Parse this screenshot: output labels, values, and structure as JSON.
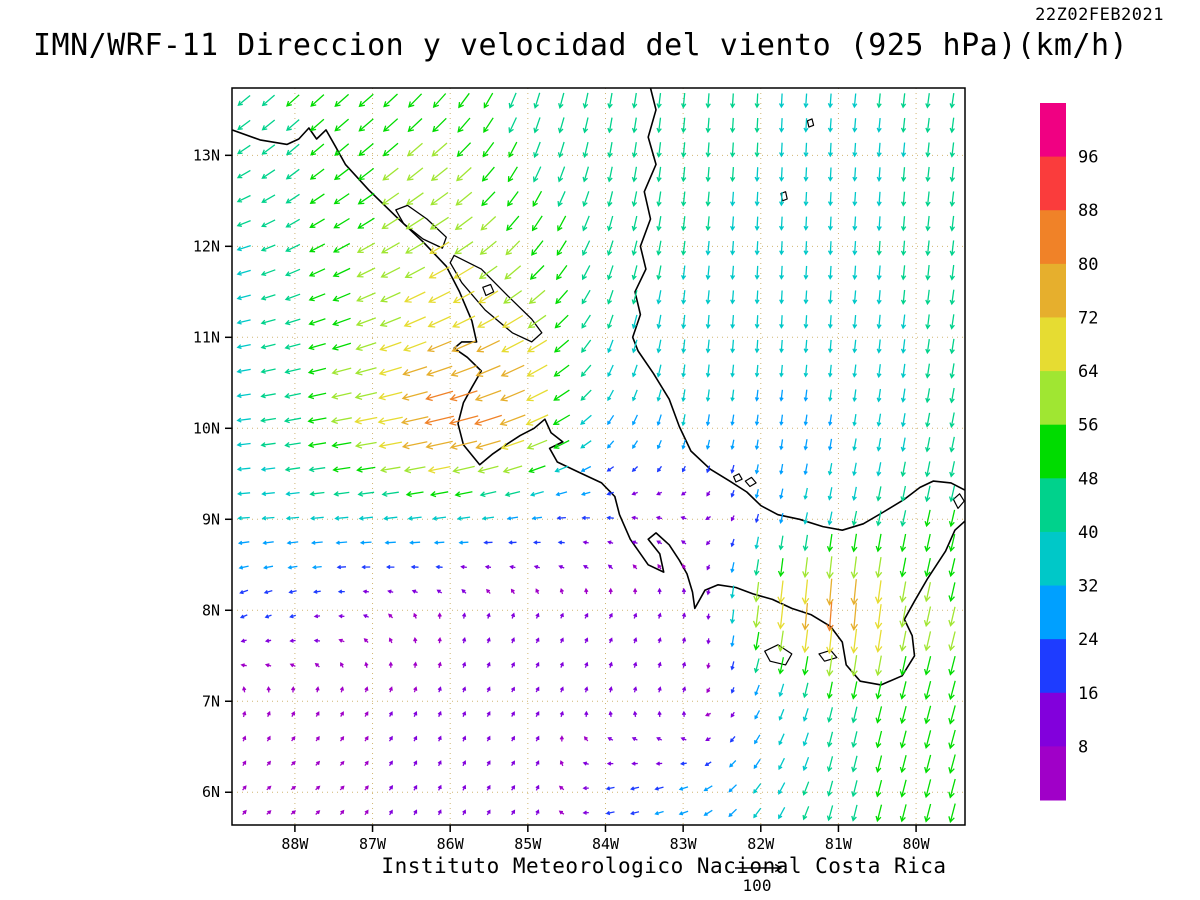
{
  "title": "IMN/WRF-11 Direccion y velocidad del viento (925 hPa)(km/h)",
  "timestamp": "22Z02FEB2021",
  "footer": {
    "text": "Instituto Meteorologico Nacional Costa Rica",
    "reference_label": "100"
  },
  "chart_data": {
    "type": "vector-field-map",
    "model": "IMN/WRF-11",
    "variable": "Direccion y velocidad del viento",
    "level": "925 hPa",
    "units": "km/h",
    "valid_time": "22Z02FEB2021",
    "x_axis": {
      "labels": [
        "88W",
        "87W",
        "86W",
        "85W",
        "84W",
        "83W",
        "82W",
        "81W",
        "80W"
      ],
      "values": [
        88,
        87,
        86,
        85,
        84,
        83,
        82,
        81,
        80
      ]
    },
    "y_axis": {
      "labels": [
        "13N",
        "12N",
        "11N",
        "10N",
        "9N",
        "8N",
        "7N",
        "6N"
      ],
      "values": [
        13,
        12,
        11,
        10,
        9,
        8,
        7,
        6
      ]
    },
    "lon_range_west": [
      88.81,
      79.37
    ],
    "lat_range": [
      13.74,
      5.64
    ],
    "grid_lines": true,
    "reference_vector": 100,
    "colorbar": {
      "levels": [
        8,
        16,
        24,
        32,
        40,
        48,
        56,
        64,
        72,
        80,
        88,
        96
      ],
      "colors": [
        "#a000c8",
        "#8200dc",
        "#1e3cff",
        "#00a0ff",
        "#00c8c8",
        "#00d28c",
        "#00dc00",
        "#a0e632",
        "#e6dc32",
        "#e6af2d",
        "#f08228",
        "#fa3c3c",
        "#f00082"
      ],
      "labels_top_to_bottom": [
        "96",
        "88",
        "80",
        "72",
        "64",
        "56",
        "48",
        "40",
        "32",
        "24",
        "16",
        "8"
      ]
    },
    "wind_grid": {
      "lons_west": [
        89,
        88,
        87,
        86,
        85,
        84,
        83,
        82,
        81,
        80,
        79
      ],
      "lats": [
        14,
        13,
        12,
        11,
        10,
        9,
        8,
        7,
        6,
        5.5
      ],
      "u": [
        [
          -32,
          -36,
          -40,
          -28,
          -12,
          -8,
          -4,
          -2,
          -4,
          -6,
          -8
        ],
        [
          -36,
          -36,
          -42,
          -44,
          -18,
          -8,
          -4,
          -2,
          -2,
          -4,
          -6
        ],
        [
          -37,
          -40,
          -50,
          -56,
          -35,
          -14,
          -5,
          -2,
          -2,
          -4,
          -6
        ],
        [
          -35,
          -43,
          -58,
          -68,
          -60,
          -14,
          -4,
          -2,
          -3,
          -5,
          -8
        ],
        [
          -34,
          -47,
          -66,
          -88,
          -70,
          -18,
          -6,
          -4,
          -5,
          -7,
          -10
        ],
        [
          -32,
          -35,
          -38,
          -36,
          -27,
          -19,
          -10,
          -6,
          -8,
          -10,
          -12
        ],
        [
          -21,
          -17,
          -8,
          1,
          3,
          5,
          2,
          -8,
          -6,
          -12,
          -14
        ],
        [
          1,
          3,
          4,
          3,
          6,
          2,
          4,
          -12,
          -10,
          -13,
          -16
        ],
        [
          4,
          6,
          5,
          4,
          8,
          -23,
          -25,
          -20,
          -11,
          -13,
          -16
        ],
        [
          4,
          5,
          3,
          4,
          7,
          -21,
          -23,
          -19,
          -11,
          -13,
          -15
        ]
      ],
      "v": [
        [
          -30,
          -34,
          -36,
          -42,
          -44,
          -43,
          -42,
          -40,
          -40,
          -42,
          -43
        ],
        [
          -20,
          -30,
          -35,
          -38,
          -44,
          -43,
          -42,
          -40,
          -38,
          -40,
          -43
        ],
        [
          -8,
          -20,
          -28,
          -34,
          -42,
          -42,
          -40,
          -38,
          -38,
          -42,
          -44
        ],
        [
          -6,
          -12,
          -20,
          -30,
          -34,
          -37,
          -38,
          -36,
          -36,
          -40,
          -43
        ],
        [
          -3,
          -8,
          -12,
          -20,
          -28,
          -24,
          -31,
          -28,
          -30,
          -39,
          -45
        ],
        [
          -2,
          -3,
          -4,
          -5,
          -4,
          2,
          4,
          -24,
          -39,
          -47,
          -48
        ],
        [
          -11,
          -5,
          4,
          8,
          8,
          8,
          10,
          -69,
          -88,
          -58,
          -53
        ],
        [
          8,
          7,
          7,
          8,
          10,
          11,
          12,
          -25,
          -44,
          -50,
          -56
        ],
        [
          6,
          4,
          6,
          9,
          11,
          -5,
          -8,
          -28,
          -45,
          -50,
          -58
        ],
        [
          5,
          5,
          7,
          9,
          10,
          -4,
          -8,
          -27,
          -44,
          -50,
          -56
        ]
      ]
    }
  },
  "map": {
    "coastline_color": "#000000",
    "coastlines": [
      [
        [
          88.81,
          13.28
        ],
        [
          88.45,
          13.17
        ],
        [
          88.1,
          13.12
        ],
        [
          87.95,
          13.18
        ],
        [
          87.82,
          13.3
        ],
        [
          87.72,
          13.18
        ],
        [
          87.6,
          13.28
        ],
        [
          87.48,
          13.1
        ],
        [
          87.35,
          12.9
        ],
        [
          87.05,
          12.62
        ],
        [
          86.7,
          12.33
        ],
        [
          86.35,
          12.05
        ],
        [
          86.05,
          11.78
        ],
        [
          85.88,
          11.5
        ],
        [
          85.72,
          11.18
        ],
        [
          85.66,
          10.95
        ],
        [
          85.85,
          10.95
        ],
        [
          85.95,
          10.88
        ],
        [
          85.78,
          10.78
        ],
        [
          85.6,
          10.63
        ],
        [
          85.72,
          10.45
        ],
        [
          85.83,
          10.28
        ],
        [
          85.9,
          10.05
        ],
        [
          85.83,
          9.82
        ],
        [
          85.62,
          9.6
        ],
        [
          85.45,
          9.72
        ],
        [
          85.28,
          9.82
        ],
        [
          85.1,
          9.92
        ],
        [
          84.92,
          10.0
        ],
        [
          84.78,
          10.1
        ],
        [
          84.7,
          9.95
        ],
        [
          84.55,
          9.85
        ],
        [
          84.72,
          9.78
        ],
        [
          84.62,
          9.63
        ],
        [
          84.35,
          9.52
        ],
        [
          84.05,
          9.4
        ],
        [
          83.88,
          9.25
        ],
        [
          83.82,
          9.05
        ],
        [
          83.68,
          8.78
        ],
        [
          83.45,
          8.5
        ],
        [
          83.25,
          8.42
        ],
        [
          83.3,
          8.62
        ],
        [
          83.45,
          8.78
        ],
        [
          83.35,
          8.85
        ],
        [
          83.18,
          8.72
        ],
        [
          83.05,
          8.55
        ],
        [
          82.95,
          8.4
        ],
        [
          82.88,
          8.2
        ],
        [
          82.85,
          8.02
        ],
        [
          82.72,
          8.22
        ],
        [
          82.55,
          8.28
        ],
        [
          82.32,
          8.25
        ],
        [
          82.1,
          8.18
        ],
        [
          81.85,
          8.12
        ],
        [
          81.6,
          8.02
        ],
        [
          81.35,
          7.95
        ],
        [
          81.1,
          7.82
        ],
        [
          80.95,
          7.65
        ],
        [
          80.9,
          7.4
        ],
        [
          80.72,
          7.22
        ],
        [
          80.45,
          7.18
        ],
        [
          80.18,
          7.28
        ],
        [
          80.02,
          7.5
        ],
        [
          80.05,
          7.72
        ],
        [
          80.15,
          7.9
        ],
        [
          80.02,
          8.1
        ],
        [
          79.85,
          8.35
        ],
        [
          79.62,
          8.65
        ],
        [
          79.5,
          8.88
        ],
        [
          79.37,
          8.98
        ]
      ],
      [
        [
          79.37,
          9.32
        ],
        [
          79.55,
          9.4
        ],
        [
          79.78,
          9.42
        ],
        [
          79.95,
          9.35
        ],
        [
          80.15,
          9.22
        ],
        [
          80.42,
          9.08
        ],
        [
          80.68,
          8.95
        ],
        [
          80.95,
          8.88
        ],
        [
          81.2,
          8.92
        ],
        [
          81.5,
          9.0
        ],
        [
          81.78,
          9.05
        ],
        [
          82.0,
          9.15
        ],
        [
          82.18,
          9.3
        ],
        [
          82.4,
          9.42
        ],
        [
          82.65,
          9.55
        ],
        [
          82.9,
          9.75
        ],
        [
          83.05,
          10.02
        ],
        [
          83.18,
          10.32
        ],
        [
          83.38,
          10.6
        ],
        [
          83.58,
          10.85
        ],
        [
          83.65,
          11.0
        ],
        [
          83.55,
          11.25
        ],
        [
          83.62,
          11.5
        ],
        [
          83.48,
          11.75
        ],
        [
          83.55,
          12.0
        ],
        [
          83.42,
          12.3
        ],
        [
          83.5,
          12.6
        ],
        [
          83.35,
          12.9
        ],
        [
          83.45,
          13.2
        ],
        [
          83.35,
          13.5
        ],
        [
          83.42,
          13.74
        ]
      ]
    ],
    "lakes": [
      [
        [
          85.95,
          11.9
        ],
        [
          85.6,
          11.75
        ],
        [
          85.25,
          11.45
        ],
        [
          84.95,
          11.2
        ],
        [
          84.82,
          11.05
        ],
        [
          84.95,
          10.95
        ],
        [
          85.2,
          11.05
        ],
        [
          85.55,
          11.3
        ],
        [
          85.85,
          11.6
        ],
        [
          86.0,
          11.82
        ],
        [
          85.95,
          11.9
        ]
      ],
      [
        [
          86.55,
          12.45
        ],
        [
          86.3,
          12.3
        ],
        [
          86.05,
          12.1
        ],
        [
          86.1,
          11.98
        ],
        [
          86.35,
          12.08
        ],
        [
          86.6,
          12.25
        ],
        [
          86.7,
          12.4
        ],
        [
          86.55,
          12.45
        ]
      ]
    ],
    "islands": [
      [
        [
          85.58,
          11.55
        ],
        [
          85.48,
          11.58
        ],
        [
          85.44,
          11.5
        ],
        [
          85.54,
          11.46
        ],
        [
          85.58,
          11.55
        ]
      ],
      [
        [
          81.95,
          7.55
        ],
        [
          81.78,
          7.62
        ],
        [
          81.6,
          7.52
        ],
        [
          81.68,
          7.4
        ],
        [
          81.88,
          7.44
        ],
        [
          81.95,
          7.55
        ]
      ],
      [
        [
          81.25,
          7.52
        ],
        [
          81.1,
          7.56
        ],
        [
          81.02,
          7.48
        ],
        [
          81.18,
          7.44
        ],
        [
          81.25,
          7.52
        ]
      ],
      [
        [
          82.2,
          9.42
        ],
        [
          82.12,
          9.46
        ],
        [
          82.06,
          9.4
        ],
        [
          82.14,
          9.36
        ],
        [
          82.2,
          9.42
        ]
      ],
      [
        [
          82.35,
          9.47
        ],
        [
          82.28,
          9.5
        ],
        [
          82.24,
          9.44
        ],
        [
          82.32,
          9.41
        ],
        [
          82.35,
          9.47
        ]
      ],
      [
        [
          79.52,
          9.22
        ],
        [
          79.44,
          9.28
        ],
        [
          79.38,
          9.2
        ],
        [
          79.46,
          9.12
        ],
        [
          79.52,
          9.22
        ]
      ],
      [
        [
          81.74,
          12.58
        ],
        [
          81.68,
          12.6
        ],
        [
          81.66,
          12.52
        ],
        [
          81.72,
          12.5
        ],
        [
          81.74,
          12.58
        ]
      ],
      [
        [
          81.4,
          13.38
        ],
        [
          81.34,
          13.4
        ],
        [
          81.32,
          13.33
        ],
        [
          81.38,
          13.31
        ],
        [
          81.4,
          13.38
        ]
      ]
    ]
  }
}
